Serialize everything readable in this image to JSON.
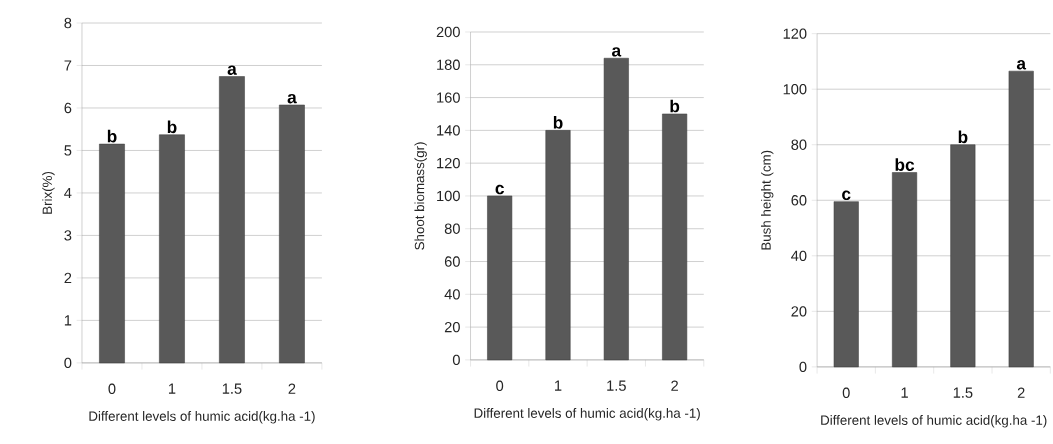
{
  "chart_data": [
    {
      "type": "bar",
      "xlabel": "Different levels of humic acid(kg.ha -1)",
      "ylabel": "Brix(%)",
      "categories": [
        "0",
        "1",
        "1.5",
        "2"
      ],
      "values": [
        5.15,
        5.37,
        6.74,
        6.07
      ],
      "color": "#595959",
      "ylim": [
        0,
        8
      ],
      "yticks": [
        0,
        1,
        2,
        3,
        4,
        5,
        6,
        7,
        8
      ],
      "grid": "y",
      "annotations": [
        {
          "text": "b",
          "x": "0",
          "y": 5.15
        },
        {
          "text": "b",
          "x": "1",
          "y": 5.37
        },
        {
          "text": "a",
          "x": "1.5",
          "y": 6.74
        },
        {
          "text": "a",
          "x": "2",
          "y": 6.07
        }
      ]
    },
    {
      "type": "bar",
      "xlabel": "Different levels of humic acid(kg.ha -1)",
      "ylabel": "Shoot biomass(gr)",
      "categories": [
        "0",
        "1",
        "1.5",
        "2"
      ],
      "values": [
        100,
        140,
        184,
        150
      ],
      "color": "#595959",
      "ylim": [
        0,
        200
      ],
      "yticks": [
        0,
        20,
        40,
        60,
        80,
        100,
        120,
        140,
        160,
        180,
        200
      ],
      "grid": "y",
      "annotations": [
        {
          "text": "c",
          "x": "0",
          "y": 100
        },
        {
          "text": "b",
          "x": "1",
          "y": 140
        },
        {
          "text": "a",
          "x": "1.5",
          "y": 184
        },
        {
          "text": "b",
          "x": "2",
          "y": 150
        }
      ]
    },
    {
      "type": "bar",
      "xlabel": "Different levels of humic acid(kg.ha -1)",
      "ylabel": "Bush height (cm)",
      "categories": [
        "0",
        "1",
        "1.5",
        "2"
      ],
      "values": [
        59.5,
        70,
        80,
        106.5
      ],
      "color": "#595959",
      "ylim": [
        0,
        120
      ],
      "yticks": [
        0,
        20,
        40,
        60,
        80,
        100,
        120
      ],
      "grid": "y",
      "annotations": [
        {
          "text": "c",
          "x": "0",
          "y": 59.5
        },
        {
          "text": "bc",
          "x": "1",
          "y": 70
        },
        {
          "text": "b",
          "x": "1.5",
          "y": 80
        },
        {
          "text": "a",
          "x": "2",
          "y": 106.5
        }
      ]
    }
  ]
}
